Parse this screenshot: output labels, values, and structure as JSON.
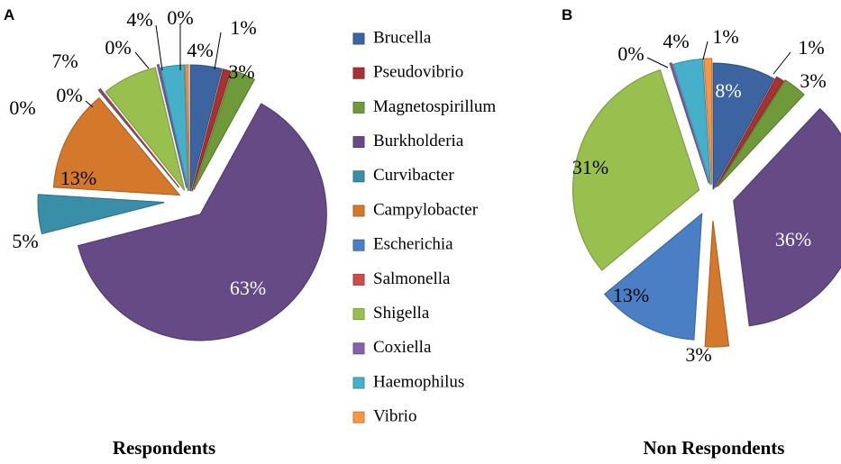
{
  "chart_data": [
    {
      "type": "pie",
      "panel": "A",
      "title": "Respondents",
      "slices": [
        {
          "name": "Brucella",
          "value": 4,
          "label": "4%",
          "color": "#3c64a0"
        },
        {
          "name": "Pseudovibrio",
          "value": 1,
          "label": "1%",
          "color": "#a83232"
        },
        {
          "name": "Magnetospirillum",
          "value": 3,
          "label": "3%",
          "color": "#6e9a3a"
        },
        {
          "name": "Burkholderia",
          "value": 63,
          "label": "63%",
          "color": "#654a86"
        },
        {
          "name": "Curvibacter",
          "value": 5,
          "label": "5%",
          "color": "#3a8fa8"
        },
        {
          "name": "Campylobacter",
          "value": 13,
          "label": "13%",
          "color": "#d4792b"
        },
        {
          "name": "Escherichia",
          "value": 0,
          "label": "0%",
          "color": "#4a7fc6"
        },
        {
          "name": "Salmonella",
          "value": 0,
          "label": "0%",
          "color": "#cc4b4b"
        },
        {
          "name": "Shigella",
          "value": 7,
          "label": "7%",
          "color": "#99c04f"
        },
        {
          "name": "Coxiella",
          "value": 0,
          "label": "0%",
          "color": "#8660ac"
        },
        {
          "name": "Haemophilus",
          "value": 4,
          "label": "4%",
          "color": "#46afca"
        },
        {
          "name": "Vibrio",
          "value": 0,
          "label": "0%",
          "color": "#f79646"
        }
      ]
    },
    {
      "type": "pie",
      "panel": "B",
      "title": "Non Respondents",
      "slices": [
        {
          "name": "Brucella",
          "value": 8,
          "label": "8%",
          "color": "#3c64a0"
        },
        {
          "name": "Pseudovibrio",
          "value": 1,
          "label": "1%",
          "color": "#a83232"
        },
        {
          "name": "Magnetospirillum",
          "value": 3,
          "label": "3%",
          "color": "#6e9a3a"
        },
        {
          "name": "Burkholderia",
          "value": 36,
          "label": "36%",
          "color": "#654a86"
        },
        {
          "name": "Curvibacter",
          "value": 0,
          "label": "",
          "color": "#3a8fa8"
        },
        {
          "name": "Campylobacter",
          "value": 3,
          "label": "3%",
          "color": "#d4792b"
        },
        {
          "name": "Escherichia",
          "value": 13,
          "label": "13%",
          "color": "#4a7fc6"
        },
        {
          "name": "Salmonella",
          "value": 0,
          "label": "",
          "color": "#cc4b4b"
        },
        {
          "name": "Shigella",
          "value": 31,
          "label": "31%",
          "color": "#99c04f"
        },
        {
          "name": "Coxiella",
          "value": 0,
          "label": "0%",
          "color": "#8660ac"
        },
        {
          "name": "Haemophilus",
          "value": 4,
          "label": "4%",
          "color": "#46afca"
        },
        {
          "name": "Vibrio",
          "value": 1,
          "label": "1%",
          "color": "#f79646"
        }
      ]
    }
  ],
  "legend": {
    "entries": [
      "Brucella",
      "Pseudovibrio",
      "Magnetospirillum",
      "Burkholderia",
      "Curvibacter",
      "Campylobacter",
      "Escherichia",
      "Salmonella",
      "Shigella",
      "Coxiella",
      "Haemophilus",
      "Vibrio"
    ],
    "colors": [
      "#3c64a0",
      "#a83232",
      "#6e9a3a",
      "#654a86",
      "#3a8fa8",
      "#d4792b",
      "#4a7fc6",
      "#cc4b4b",
      "#99c04f",
      "#8660ac",
      "#46afca",
      "#f79646"
    ]
  }
}
